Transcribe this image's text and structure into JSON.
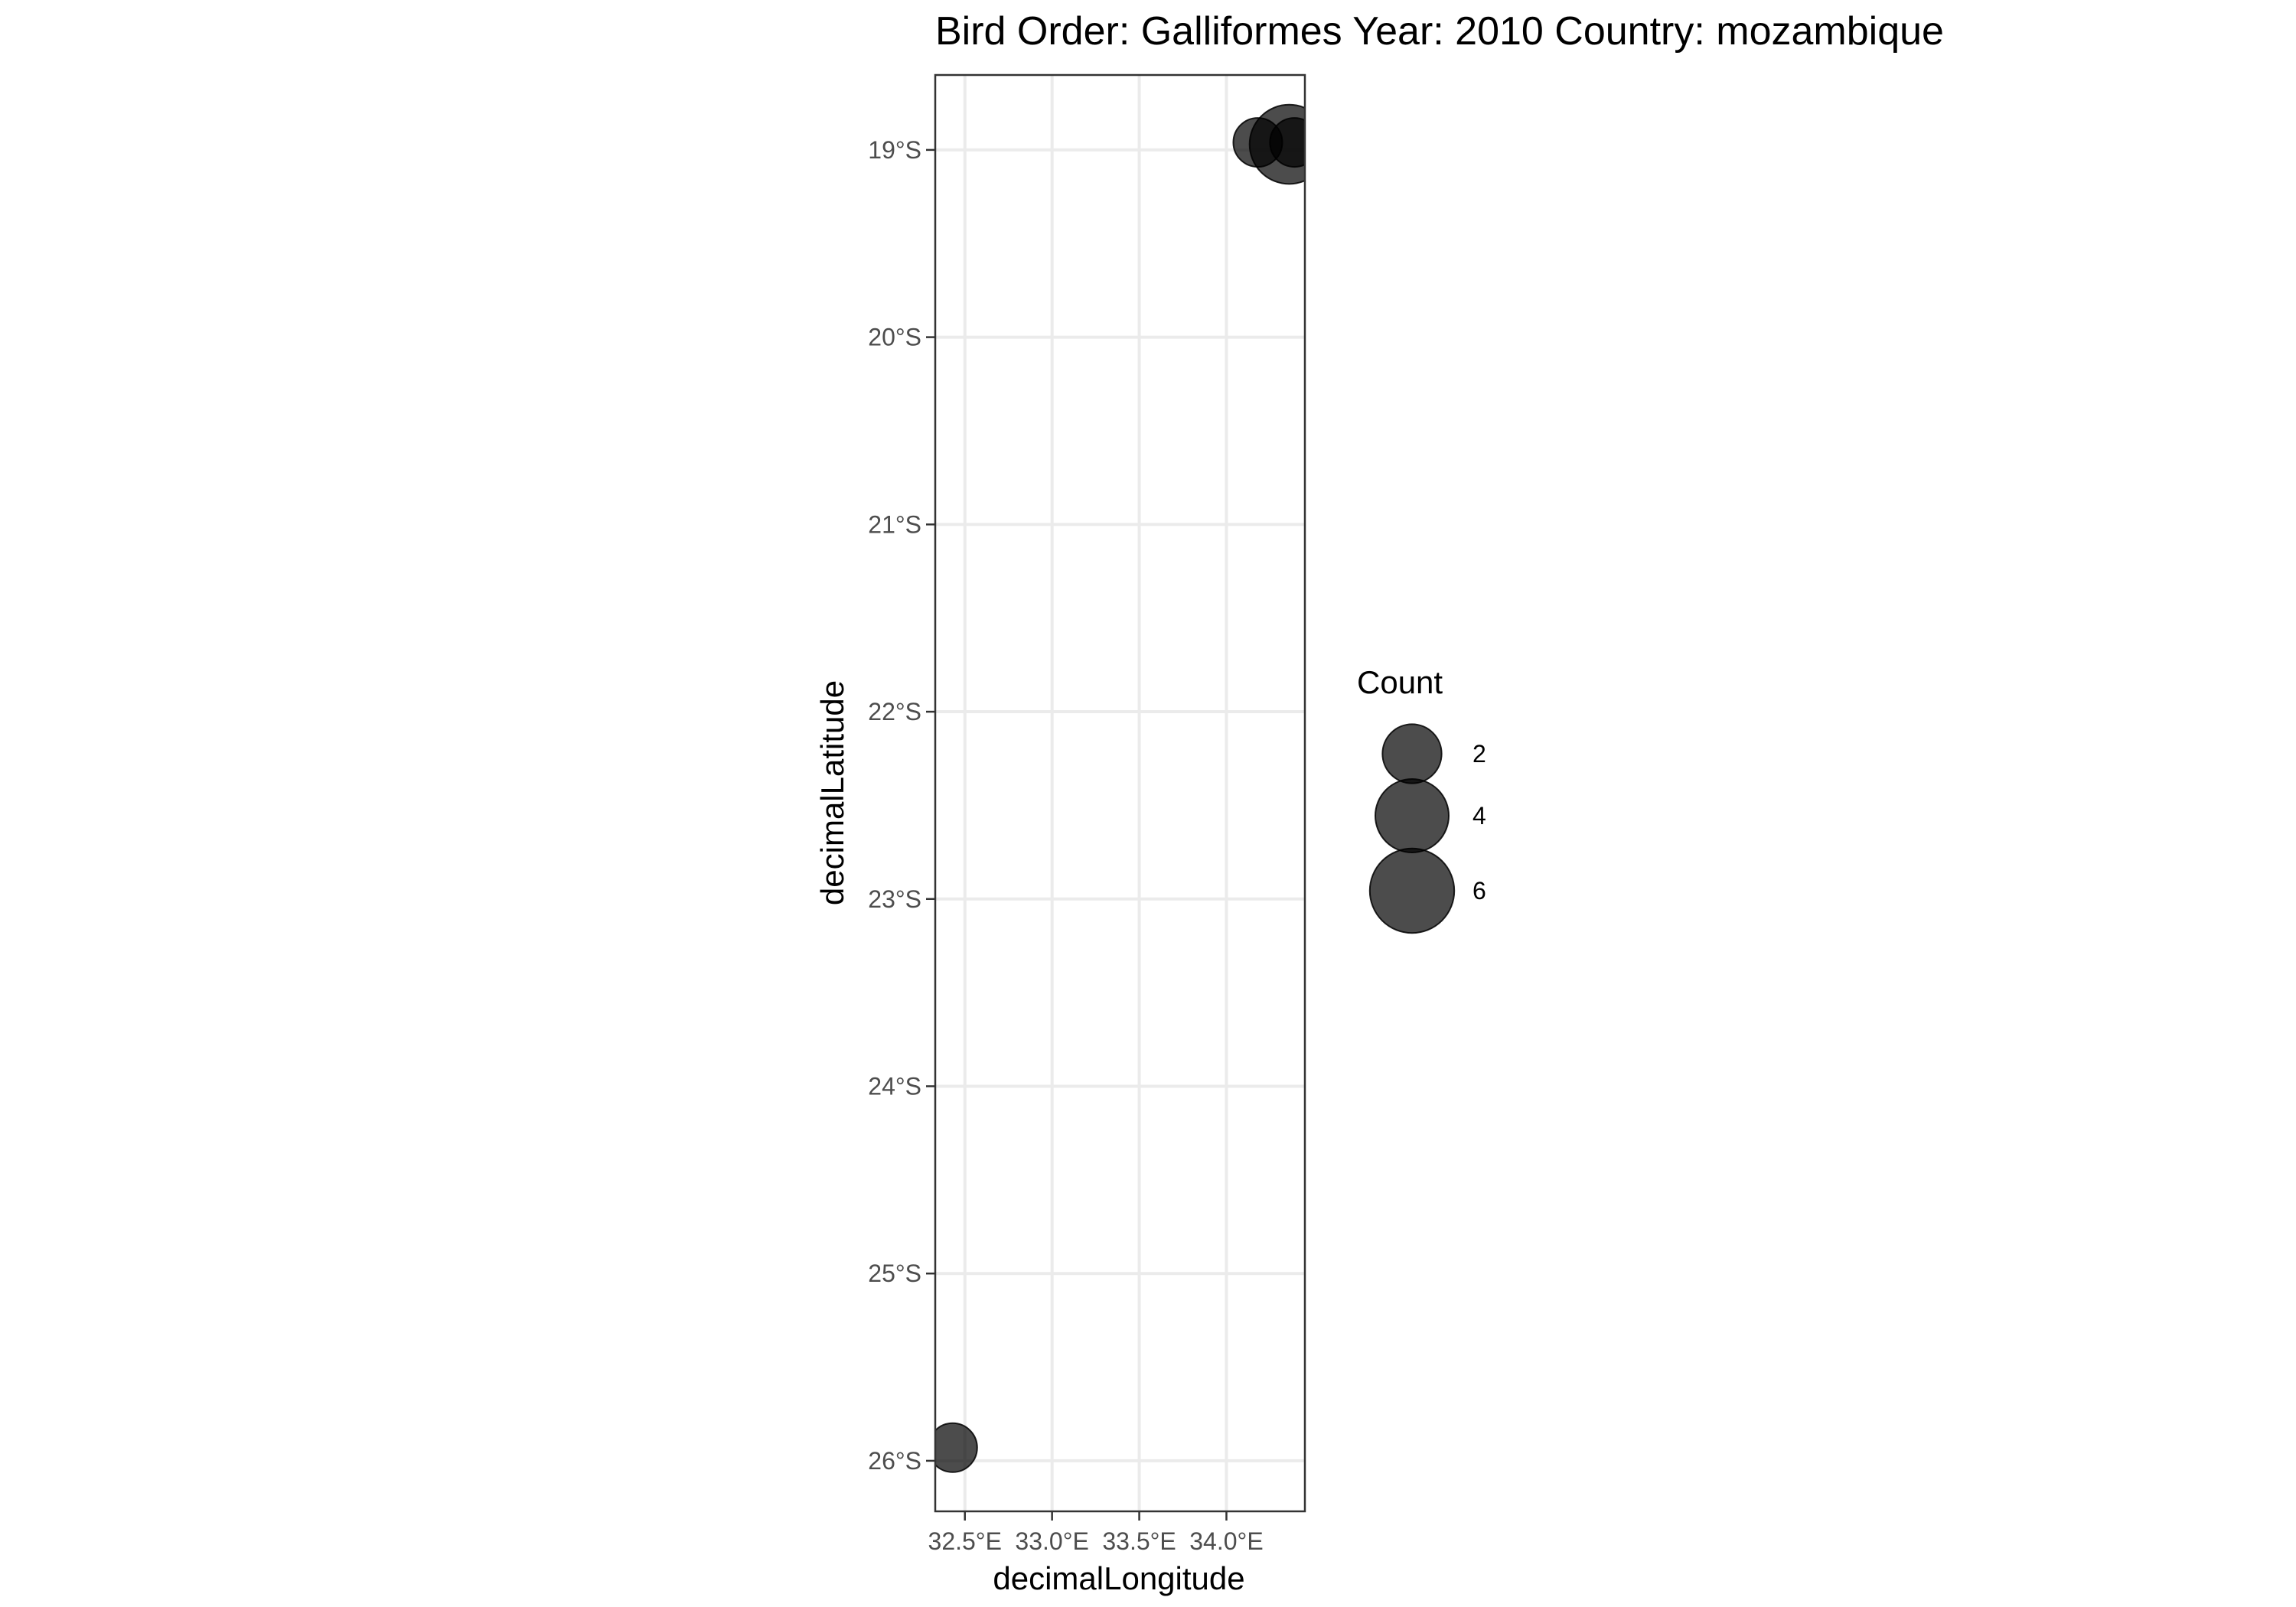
{
  "chart_data": {
    "type": "scatter",
    "title": "Bird Order: Galliformes Year: 2010 Country: mozambique",
    "xlabel": "decimalLongitude",
    "ylabel": "decimalLatitude",
    "xlim": [
      32.33,
      34.45
    ],
    "ylim": [
      -26.27,
      -18.6
    ],
    "x_ticks": [
      {
        "value": 32.5,
        "label": "32.5°E"
      },
      {
        "value": 33.0,
        "label": "33.0°E"
      },
      {
        "value": 33.5,
        "label": "33.5°E"
      },
      {
        "value": 34.0,
        "label": "34.0°E"
      }
    ],
    "y_ticks": [
      {
        "value": -19,
        "label": "19°S"
      },
      {
        "value": -20,
        "label": "20°S"
      },
      {
        "value": -21,
        "label": "21°S"
      },
      {
        "value": -22,
        "label": "22°S"
      },
      {
        "value": -23,
        "label": "23°S"
      },
      {
        "value": -24,
        "label": "24°S"
      },
      {
        "value": -25,
        "label": "25°S"
      },
      {
        "value": -26,
        "label": "26°S"
      }
    ],
    "grid": true,
    "points": [
      {
        "x": 34.18,
        "y": -18.96,
        "count": 1
      },
      {
        "x": 34.36,
        "y": -18.97,
        "count": 5
      },
      {
        "x": 34.39,
        "y": -18.96,
        "count": 1
      },
      {
        "x": 32.43,
        "y": -25.93,
        "count": 1
      }
    ],
    "size_legend": {
      "title": "Count",
      "placement": "right",
      "entries": [
        {
          "value": 2,
          "label": "2"
        },
        {
          "value": 4,
          "label": "4"
        },
        {
          "value": 6,
          "label": "6"
        }
      ]
    },
    "point_color": "#000000",
    "point_opacity": 0.7
  }
}
